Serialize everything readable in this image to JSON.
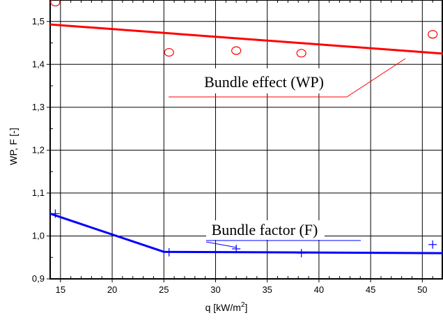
{
  "chart_data": {
    "type": "line",
    "xlabel_main": "q  [kW/m",
    "xlabel_sup": "2",
    "xlabel_end": "]",
    "ylabel": "WP, F [-]",
    "xlim": [
      14,
      52
    ],
    "ylim": [
      0.9,
      1.55
    ],
    "x_ticks": [
      15,
      20,
      25,
      30,
      35,
      40,
      45,
      50
    ],
    "x_tick_labels": [
      "15",
      "20",
      "25",
      "30",
      "35",
      "40",
      "45",
      "50"
    ],
    "y_ticks": [
      0.9,
      1.0,
      1.1,
      1.2,
      1.3,
      1.4,
      1.5
    ],
    "y_tick_labels": [
      "0,9",
      "1,0",
      "1,1",
      "1,2",
      "1,3",
      "1,4",
      "1,5"
    ],
    "grid": true,
    "series": [
      {
        "name": "Bundle effect (WP)",
        "color": "#ff0000",
        "marker": "circle",
        "points": [
          {
            "x": 14.5,
            "y": 1.545
          },
          {
            "x": 25.5,
            "y": 1.428
          },
          {
            "x": 32,
            "y": 1.432
          },
          {
            "x": 38.3,
            "y": 1.426
          },
          {
            "x": 51,
            "y": 1.47
          }
        ],
        "fit": [
          {
            "x": 14,
            "y": 1.493
          },
          {
            "x": 52,
            "y": 1.425
          }
        ]
      },
      {
        "name": "Bundle factor (F)",
        "color": "#0000ff",
        "marker": "plus",
        "points": [
          {
            "x": 14.5,
            "y": 1.052
          },
          {
            "x": 25.5,
            "y": 0.962
          },
          {
            "x": 32,
            "y": 0.97
          },
          {
            "x": 38.3,
            "y": 0.96
          },
          {
            "x": 51,
            "y": 0.98
          }
        ],
        "fit": [
          {
            "x": 14,
            "y": 1.052
          },
          {
            "x": 25,
            "y": 0.963
          },
          {
            "x": 52,
            "y": 0.96
          }
        ]
      }
    ],
    "annotations": [
      {
        "text": "Bundle effect (WP)",
        "series": 0
      },
      {
        "text": "Bundle factor (F)",
        "series": 1
      }
    ]
  }
}
